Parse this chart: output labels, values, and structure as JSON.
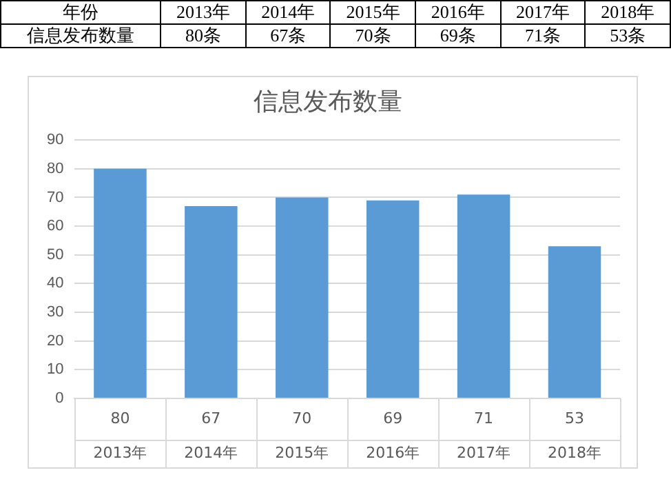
{
  "chart_data": {
    "type": "bar",
    "title": "信息发布数量",
    "categories": [
      "2013年",
      "2014年",
      "2015年",
      "2016年",
      "2017年",
      "2018年"
    ],
    "values": [
      80,
      67,
      70,
      69,
      71,
      53
    ],
    "color": "#5b9bd5",
    "ylim": [
      0,
      90
    ],
    "yticks": [
      0,
      10,
      20,
      30,
      40,
      50,
      60,
      70,
      80,
      90
    ],
    "grid": "y",
    "data_labels": true,
    "legend": false,
    "annotations": [
      "年份",
      "2013年",
      "2014年",
      "2015年",
      "2016年",
      "2017年",
      "2018年",
      "信息发布数量",
      "80条",
      "67条",
      "70条",
      "69条",
      "71条",
      "53条"
    ]
  }
}
